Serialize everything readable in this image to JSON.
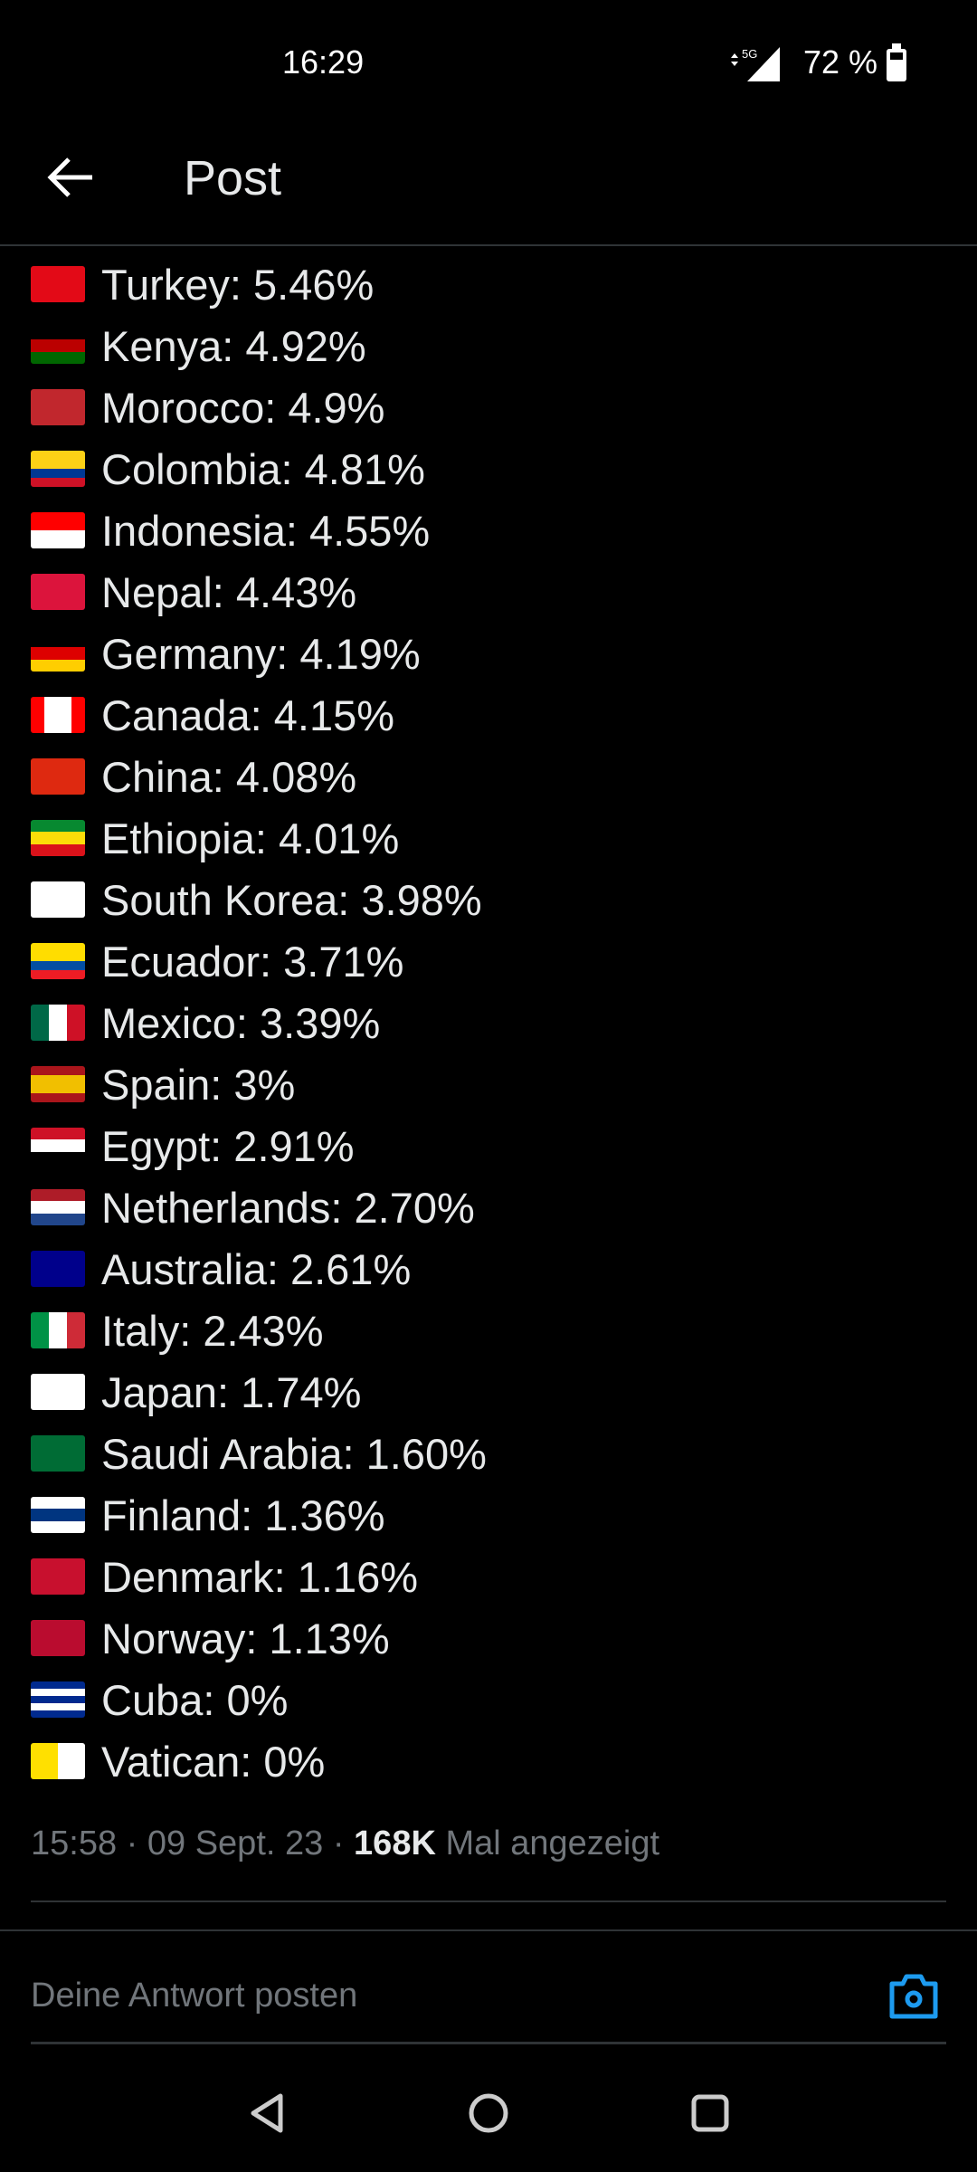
{
  "status_bar": {
    "time": "16:29",
    "network": "5G",
    "battery": "72 %"
  },
  "header": {
    "title": "Post"
  },
  "items": [
    {
      "label": "Turkey: 5.46%",
      "flag": {
        "dir": "h",
        "stripes": [
          "#e30a17"
        ]
      }
    },
    {
      "label": "Kenya: 4.92%",
      "flag": {
        "dir": "h",
        "stripes": [
          "#000000",
          "#bb0000",
          "#006600"
        ]
      }
    },
    {
      "label": "Morocco: 4.9%",
      "flag": {
        "dir": "h",
        "stripes": [
          "#c1272d"
        ]
      }
    },
    {
      "label": "Colombia: 4.81%",
      "flag": {
        "dir": "h",
        "stripes": [
          "#fcd116",
          "#fcd116",
          "#003893",
          "#ce1126"
        ]
      }
    },
    {
      "label": "Indonesia: 4.55%",
      "flag": {
        "dir": "h",
        "stripes": [
          "#ff0000",
          "#ffffff"
        ]
      }
    },
    {
      "label": "Nepal: 4.43%",
      "flag": {
        "dir": "h",
        "stripes": [
          "#dc143c"
        ]
      }
    },
    {
      "label": "Germany: 4.19%",
      "flag": {
        "dir": "h",
        "stripes": [
          "#000000",
          "#dd0000",
          "#ffce00"
        ]
      }
    },
    {
      "label": "Canada: 4.15%",
      "flag": {
        "dir": "v",
        "stripes": [
          "#ff0000",
          "#ffffff",
          "#ffffff",
          "#ff0000"
        ]
      }
    },
    {
      "label": "China: 4.08%",
      "flag": {
        "dir": "h",
        "stripes": [
          "#de2910"
        ]
      }
    },
    {
      "label": "Ethiopia: 4.01%",
      "flag": {
        "dir": "h",
        "stripes": [
          "#078930",
          "#fcdd09",
          "#da121a"
        ]
      }
    },
    {
      "label": "South Korea: 3.98%",
      "flag": {
        "dir": "h",
        "stripes": [
          "#ffffff"
        ]
      }
    },
    {
      "label": "Ecuador: 3.71%",
      "flag": {
        "dir": "h",
        "stripes": [
          "#ffdd00",
          "#ffdd00",
          "#034ea2",
          "#ed1c24"
        ]
      }
    },
    {
      "label": "Mexico: 3.39%",
      "flag": {
        "dir": "v",
        "stripes": [
          "#006847",
          "#ffffff",
          "#ce1126"
        ]
      }
    },
    {
      "label": "Spain: 3%",
      "flag": {
        "dir": "h",
        "stripes": [
          "#aa151b",
          "#f1bf00",
          "#f1bf00",
          "#aa151b"
        ]
      }
    },
    {
      "label": "Egypt: 2.91%",
      "flag": {
        "dir": "h",
        "stripes": [
          "#ce1126",
          "#ffffff",
          "#000000"
        ]
      }
    },
    {
      "label": "Netherlands: 2.70%",
      "flag": {
        "dir": "h",
        "stripes": [
          "#ae1c28",
          "#ffffff",
          "#21468b"
        ]
      }
    },
    {
      "label": "Australia: 2.61%",
      "flag": {
        "dir": "h",
        "stripes": [
          "#00008b"
        ]
      }
    },
    {
      "label": "Italy: 2.43%",
      "flag": {
        "dir": "v",
        "stripes": [
          "#009246",
          "#ffffff",
          "#ce2b37"
        ]
      }
    },
    {
      "label": "Japan: 1.74%",
      "flag": {
        "dir": "h",
        "stripes": [
          "#ffffff"
        ]
      }
    },
    {
      "label": "Saudi Arabia: 1.60%",
      "flag": {
        "dir": "h",
        "stripes": [
          "#006c35"
        ]
      }
    },
    {
      "label": "Finland: 1.36%",
      "flag": {
        "dir": "h",
        "stripes": [
          "#ffffff",
          "#003580",
          "#ffffff"
        ]
      }
    },
    {
      "label": "Denmark: 1.16%",
      "flag": {
        "dir": "h",
        "stripes": [
          "#c8102e"
        ]
      }
    },
    {
      "label": "Norway: 1.13%",
      "flag": {
        "dir": "h",
        "stripes": [
          "#ba0c2f"
        ]
      }
    },
    {
      "label": "Cuba: 0%",
      "flag": {
        "dir": "h",
        "stripes": [
          "#002a8f",
          "#ffffff",
          "#002a8f",
          "#ffffff",
          "#002a8f"
        ]
      }
    },
    {
      "label": "Vatican: 0%",
      "flag": {
        "dir": "v",
        "stripes": [
          "#ffe000",
          "#ffffff"
        ]
      }
    }
  ],
  "meta": {
    "time": "15:58",
    "date": "09 Sept. 23",
    "views": "168K",
    "views_label": "Mal angezeigt",
    "separator": " · "
  },
  "reply": {
    "placeholder": "Deine Antwort posten"
  },
  "colors": {
    "accent": "#1d9bf0",
    "text": "#e7e9ea",
    "muted": "#71767b",
    "divider": "#2f3336"
  },
  "icons": {
    "back": "arrow-left-icon",
    "camera": "camera-icon",
    "nav": [
      "back-triangle-icon",
      "home-circle-icon",
      "recents-square-icon"
    ]
  }
}
